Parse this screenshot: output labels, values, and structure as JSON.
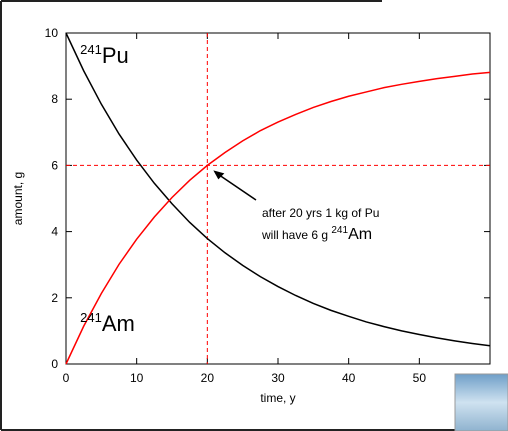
{
  "chart_data": {
    "type": "line",
    "x_label": "time, y",
    "y_label": "amount, g",
    "x": [
      0,
      2.5,
      5,
      7.5,
      10,
      12.5,
      15,
      17.5,
      20,
      22.5,
      25,
      27.5,
      30,
      32.5,
      35,
      37.5,
      40,
      42.5,
      45,
      47.5,
      50,
      52.5,
      55,
      57.5,
      60
    ],
    "series": [
      {
        "color": "#000000",
        "values": [
          10,
          8.86,
          7.85,
          6.95,
          6.16,
          5.46,
          4.84,
          4.28,
          3.79,
          3.36,
          2.98,
          2.64,
          2.34,
          2.07,
          1.83,
          1.62,
          1.44,
          1.27,
          1.13,
          1.0,
          0.89,
          0.79,
          0.7,
          0.62,
          0.55
        ]
      },
      {
        "color": "#ff0000",
        "values": [
          0,
          1.14,
          2.13,
          3.01,
          3.77,
          4.44,
          5.03,
          5.55,
          6.0,
          6.39,
          6.74,
          7.05,
          7.31,
          7.54,
          7.75,
          7.93,
          8.09,
          8.22,
          8.35,
          8.45,
          8.54,
          8.62,
          8.69,
          8.76,
          8.81
        ]
      }
    ],
    "curve_labels": [
      {
        "mass": "241",
        "symbol": "Pu",
        "x": 2,
        "y": 9.1
      },
      {
        "mass": "241",
        "symbol": "Am",
        "x": 2,
        "y": 1.0
      }
    ],
    "ref_lines": {
      "x": 20,
      "y": 6,
      "color": "#ff0000"
    },
    "annotation": {
      "line1": "after 20 yrs 1 kg of Pu",
      "line2": "will have 6 g ",
      "mass": "241",
      "symbol": "Am"
    },
    "xlim": [
      0,
      60
    ],
    "ylim": [
      0,
      10
    ],
    "xticks": [
      0,
      10,
      20,
      30,
      40,
      50
    ],
    "yticks": [
      0,
      2,
      4,
      6,
      8,
      10
    ]
  }
}
